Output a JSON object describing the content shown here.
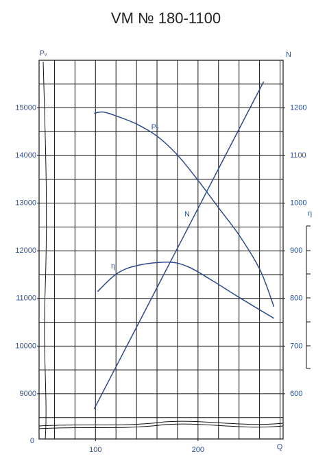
{
  "chart_data": {
    "type": "line",
    "title": "VM № 180-1100",
    "y_label": "Pᵥ",
    "y2_label": "N",
    "x_label": "Q",
    "eta_axis_label": "η",
    "axis_break_label": "0",
    "xlim": [
      45,
      283
    ],
    "xticks": [
      100,
      200
    ],
    "xgrid": [
      60,
      80,
      100,
      120,
      140,
      160,
      180,
      200,
      220,
      240,
      260,
      280
    ],
    "ylim": [
      8050,
      16000
    ],
    "yticks": [
      9000,
      10000,
      11000,
      12000,
      13000,
      14000,
      15000
    ],
    "ygrid": [
      8500,
      9000,
      9500,
      10000,
      10500,
      11000,
      11500,
      12000,
      12500,
      13000,
      13500,
      14000,
      14500,
      15000,
      15500
    ],
    "y2lim": [
      505,
      1300
    ],
    "y2ticks": [
      600,
      700,
      800,
      900,
      1000,
      1100,
      1200
    ],
    "grid": true,
    "series": [
      {
        "name": "Pᵥ",
        "color": "#2d4a8a",
        "axis": "y",
        "x": [
          98.7,
          107.3,
          120.7,
          140.7,
          160.7,
          180.7,
          200.7,
          220.7,
          240.7,
          260.7,
          274
        ],
        "values": [
          14885,
          14914,
          14827,
          14655,
          14396,
          13993,
          13460,
          12885,
          12309,
          11590,
          10827
        ]
      },
      {
        "name": "N",
        "color": "#2d4a8a",
        "axis": "y2",
        "x": [
          98.7,
          150,
          200,
          250,
          264
        ],
        "values": [
          568,
          781,
          989,
          1197,
          1255
        ]
      },
      {
        "name": "η",
        "color": "#2d4a8a",
        "axis": "y",
        "x": [
          102,
          120.7,
          140.7,
          170.7,
          190.7,
          214,
          240.7,
          274
        ],
        "values": [
          11144,
          11518,
          11691,
          11763,
          11662,
          11374,
          11014,
          10583
        ]
      }
    ]
  }
}
